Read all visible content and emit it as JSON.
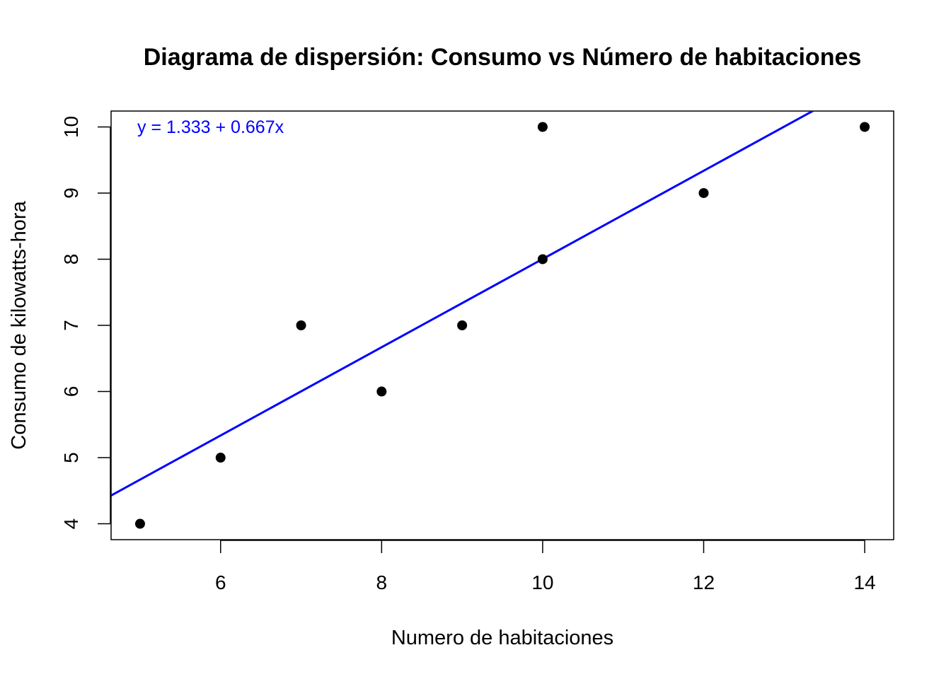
{
  "chart_data": {
    "type": "scatter",
    "title": "Diagrama de dispersión: Consumo vs Número de habitaciones",
    "xlabel": "Numero de habitaciones",
    "ylabel": "Consumo de kilowatts-hora",
    "xlim": [
      4.64,
      14.36
    ],
    "ylim": [
      3.76,
      10.24
    ],
    "x_ticks": [
      6,
      8,
      10,
      12,
      14
    ],
    "y_ticks": [
      4,
      5,
      6,
      7,
      8,
      9,
      10
    ],
    "grid": false,
    "points": [
      {
        "x": 5,
        "y": 4
      },
      {
        "x": 6,
        "y": 5
      },
      {
        "x": 7,
        "y": 7
      },
      {
        "x": 8,
        "y": 6
      },
      {
        "x": 9,
        "y": 7
      },
      {
        "x": 10,
        "y": 8
      },
      {
        "x": 10,
        "y": 10
      },
      {
        "x": 12,
        "y": 9
      },
      {
        "x": 14,
        "y": 10
      }
    ],
    "point_color": "#000000",
    "regression": {
      "intercept": 1.333,
      "slope": 0.667,
      "color": "#0000FF",
      "equation_label": "y = 1.333 + 0.667x"
    }
  }
}
